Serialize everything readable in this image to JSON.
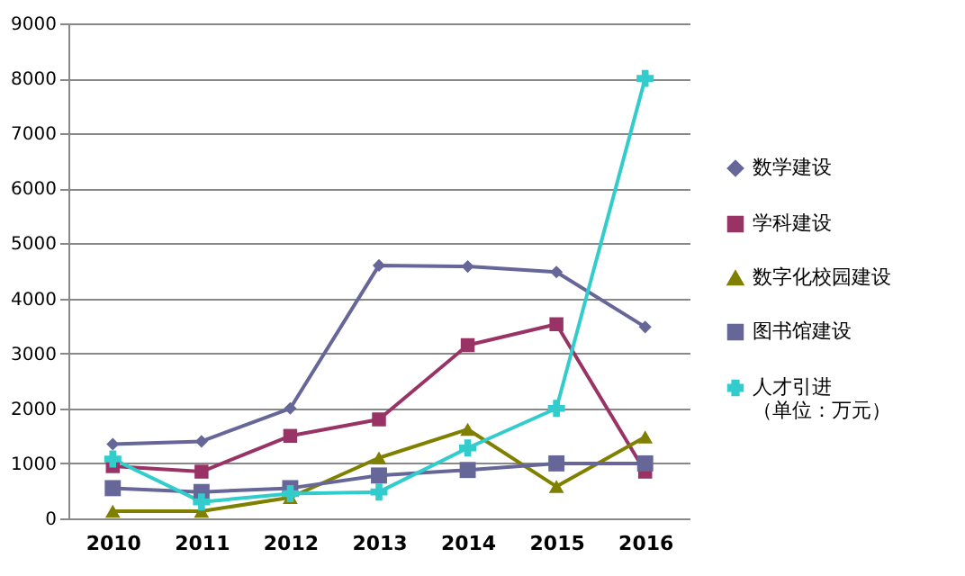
{
  "chart_data": {
    "type": "line",
    "categories": [
      "2010",
      "2011",
      "2012",
      "2013",
      "2014",
      "2015",
      "2016"
    ],
    "series": [
      {
        "name": "数学建设",
        "color": "#666699",
        "marker": "diamond",
        "values": [
          1350,
          1400,
          2000,
          4600,
          4580,
          4480,
          3480
        ]
      },
      {
        "name": "学科建设",
        "color": "#993366",
        "marker": "square",
        "values": [
          950,
          850,
          1500,
          1800,
          3150,
          3530,
          850
        ]
      },
      {
        "name": "数字化校园建设",
        "color": "#808000",
        "marker": "triangle",
        "values": [
          130,
          130,
          380,
          1100,
          1620,
          580,
          1480
        ]
      },
      {
        "name": "图书馆建设",
        "color": "#666699",
        "marker": "square",
        "values": [
          550,
          480,
          550,
          780,
          880,
          1000,
          1000
        ]
      },
      {
        "name": "人才引进（单位：万元）",
        "color": "#33cccc",
        "marker": "cross",
        "values": [
          1080,
          300,
          450,
          480,
          1280,
          2000,
          8000
        ]
      }
    ],
    "ylim": [
      0,
      9000
    ],
    "yticks": [
      0,
      1000,
      2000,
      3000,
      4000,
      5000,
      6000,
      7000,
      8000,
      9000
    ],
    "grid": "y",
    "legend": "right"
  }
}
